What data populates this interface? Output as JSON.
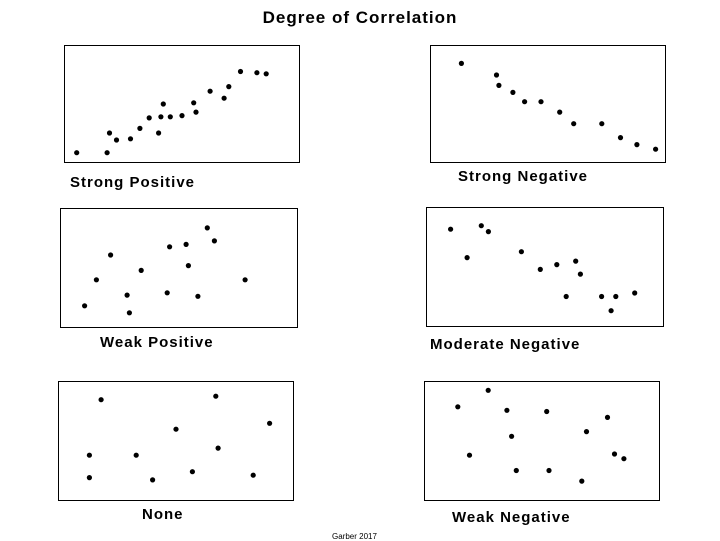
{
  "title": "Degree of Correlation",
  "footer": "Garber 2017",
  "chart_data": [
    {
      "type": "scatter",
      "caption": "Strong Positive",
      "xlim": [
        0,
        100
      ],
      "ylim": [
        0,
        100
      ],
      "grid": false,
      "x": [
        5,
        18,
        19,
        22,
        28,
        32,
        36,
        40,
        41,
        42,
        45,
        50,
        55,
        56,
        62,
        68,
        70,
        75,
        82,
        86
      ],
      "y": [
        8,
        8,
        25,
        19,
        20,
        29,
        38,
        25,
        39,
        50,
        39,
        40,
        51,
        43,
        61,
        55,
        65,
        78,
        77,
        76
      ]
    },
    {
      "type": "scatter",
      "caption": "Strong Negative",
      "xlim": [
        0,
        100
      ],
      "ylim": [
        0,
        100
      ],
      "grid": false,
      "x": [
        13,
        28,
        29,
        35,
        40,
        47,
        55,
        61,
        73,
        81,
        88,
        96
      ],
      "y": [
        85,
        75,
        66,
        60,
        52,
        52,
        43,
        33,
        33,
        21,
        15,
        11
      ]
    },
    {
      "type": "scatter",
      "caption": "Weak Positive",
      "xlim": [
        0,
        100
      ],
      "ylim": [
        0,
        100
      ],
      "grid": false,
      "x": [
        10,
        15,
        21,
        28,
        29,
        34,
        45,
        46,
        53,
        54,
        58,
        62,
        65,
        78
      ],
      "y": [
        18,
        40,
        61,
        27,
        12,
        48,
        29,
        68,
        70,
        52,
        26,
        84,
        73,
        40
      ]
    },
    {
      "type": "scatter",
      "caption": "Moderate Negative",
      "xlim": [
        0,
        100
      ],
      "ylim": [
        0,
        100
      ],
      "grid": false,
      "x": [
        10,
        17,
        23,
        26,
        40,
        48,
        55,
        59,
        63,
        65,
        74,
        78,
        80,
        88
      ],
      "y": [
        82,
        58,
        85,
        80,
        63,
        48,
        52,
        25,
        55,
        44,
        25,
        13,
        25,
        28
      ]
    },
    {
      "type": "scatter",
      "caption": "None",
      "xlim": [
        0,
        100
      ],
      "ylim": [
        0,
        100
      ],
      "grid": false,
      "x": [
        13,
        13,
        18,
        33,
        40,
        50,
        57,
        67,
        68,
        83,
        90
      ],
      "y": [
        38,
        19,
        85,
        38,
        17,
        60,
        24,
        88,
        44,
        21,
        65
      ]
    },
    {
      "type": "scatter",
      "caption": "Weak Negative",
      "xlim": [
        0,
        100
      ],
      "ylim": [
        0,
        100
      ],
      "grid": false,
      "x": [
        14,
        19,
        27,
        35,
        37,
        39,
        52,
        53,
        67,
        69,
        78,
        81,
        85
      ],
      "y": [
        79,
        38,
        93,
        76,
        54,
        25,
        75,
        25,
        16,
        58,
        70,
        39,
        35
      ]
    }
  ]
}
